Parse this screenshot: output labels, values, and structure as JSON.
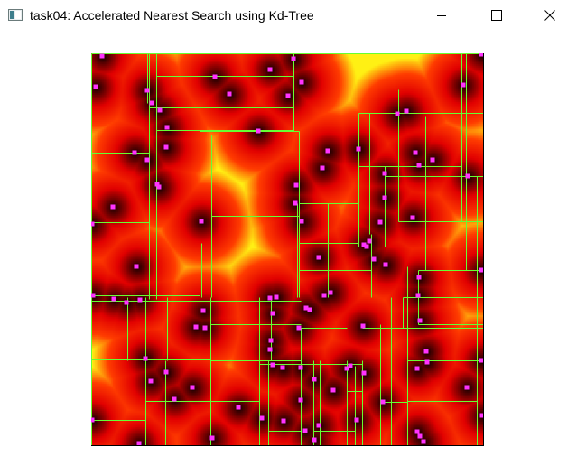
{
  "window": {
    "title": "task04: Accelerated Nearest Search using Kd-Tree",
    "icons": {
      "app": "app-window-icon",
      "minimize": "minimize-icon",
      "maximize": "maximize-icon",
      "close": "close-icon"
    }
  },
  "visualization": {
    "colors": {
      "near": "#000000",
      "mid": "#e00000",
      "far": "#ffee00",
      "split_line": "#66ff33",
      "site": "#ff33ff"
    }
  }
}
